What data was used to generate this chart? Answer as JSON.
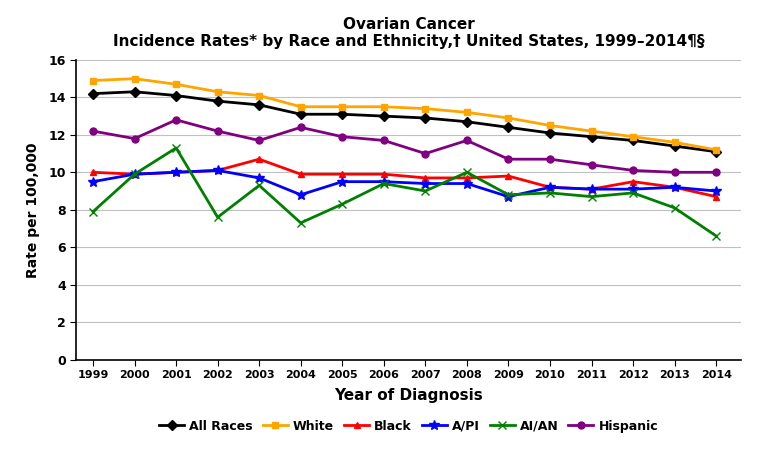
{
  "title_line1": "Ovarian Cancer",
  "title_line2": "Incidence Rates* by Race and Ethnicity,† United States, 1999–2014¶§",
  "xlabel": "Year of Diagnosis",
  "ylabel": "Rate per 100,000",
  "years": [
    1999,
    2000,
    2001,
    2002,
    2003,
    2004,
    2005,
    2006,
    2007,
    2008,
    2009,
    2010,
    2011,
    2012,
    2013,
    2014
  ],
  "ylim": [
    0,
    16
  ],
  "yticks": [
    0,
    2,
    4,
    6,
    8,
    10,
    12,
    14,
    16
  ],
  "series": {
    "All Races": {
      "color": "#000000",
      "marker": "D",
      "markersize": 5,
      "linewidth": 2.0,
      "values": [
        14.2,
        14.3,
        14.1,
        13.8,
        13.6,
        13.1,
        13.1,
        13.0,
        12.9,
        12.7,
        12.4,
        12.1,
        11.9,
        11.7,
        11.4,
        11.1
      ]
    },
    "White": {
      "color": "#FFA500",
      "marker": "s",
      "markersize": 5,
      "linewidth": 2.0,
      "values": [
        14.9,
        15.0,
        14.7,
        14.3,
        14.1,
        13.5,
        13.5,
        13.5,
        13.4,
        13.2,
        12.9,
        12.5,
        12.2,
        11.9,
        11.6,
        11.2
      ]
    },
    "Black": {
      "color": "#FF0000",
      "marker": "^",
      "markersize": 5,
      "linewidth": 2.0,
      "values": [
        10.0,
        9.9,
        10.0,
        10.1,
        10.7,
        9.9,
        9.9,
        9.9,
        9.7,
        9.7,
        9.8,
        9.2,
        9.1,
        9.5,
        9.2,
        8.7
      ]
    },
    "A/PI": {
      "color": "#0000FF",
      "marker": "*",
      "markersize": 7,
      "linewidth": 2.0,
      "values": [
        9.5,
        9.9,
        10.0,
        10.1,
        9.7,
        8.8,
        9.5,
        9.5,
        9.4,
        9.4,
        8.7,
        9.2,
        9.1,
        9.1,
        9.2,
        9.0
      ]
    },
    "AI/AN": {
      "color": "#008000",
      "marker": "x",
      "markersize": 6,
      "linewidth": 2.0,
      "values": [
        7.9,
        9.9,
        11.3,
        7.6,
        9.3,
        7.3,
        8.3,
        9.4,
        9.0,
        10.0,
        8.8,
        8.9,
        8.7,
        8.9,
        8.1,
        6.6
      ]
    },
    "Hispanic": {
      "color": "#800080",
      "marker": "o",
      "markersize": 5,
      "linewidth": 2.0,
      "values": [
        12.2,
        11.8,
        12.8,
        12.2,
        11.7,
        12.4,
        11.9,
        11.7,
        11.0,
        11.7,
        10.7,
        10.7,
        10.4,
        10.1,
        10.0,
        10.0
      ]
    }
  },
  "legend_order": [
    "All Races",
    "White",
    "Black",
    "A/PI",
    "AI/AN",
    "Hispanic"
  ],
  "background_color": "#FFFFFF",
  "grid_color": "#C0C0C0"
}
